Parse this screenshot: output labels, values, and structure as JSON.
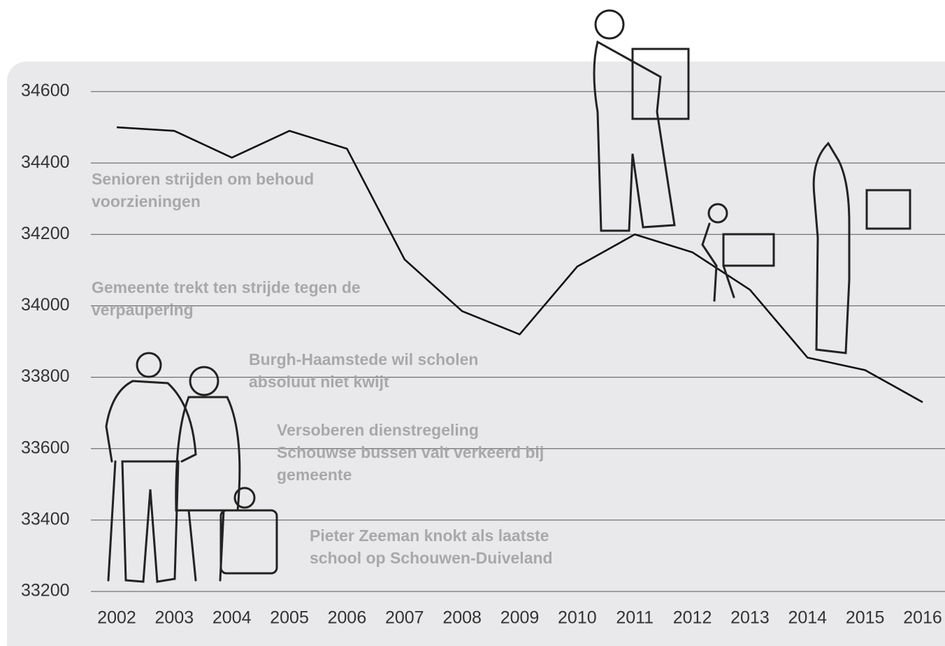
{
  "chart_data": {
    "type": "line",
    "categories": [
      "2002",
      "2003",
      "2004",
      "2005",
      "2006",
      "2007",
      "2008",
      "2009",
      "2010",
      "2011",
      "2012",
      "2013",
      "2014",
      "2015",
      "2016"
    ],
    "values": [
      34500,
      34490,
      34415,
      34490,
      34440,
      34130,
      33985,
      33920,
      34110,
      34200,
      34150,
      34045,
      33855,
      33820,
      33730
    ],
    "color": "#111111",
    "ylim": [
      33200,
      34600
    ],
    "yticks": [
      33200,
      33400,
      33600,
      33800,
      34000,
      34200,
      34400,
      34600
    ],
    "grid": true,
    "annotations": [
      [
        "Senioren strijden om behoud",
        "voorzieningen"
      ],
      [
        "Gemeente trekt ten strijde tegen de",
        "verpaupering"
      ],
      [
        "Burgh-Haamstede wil scholen",
        "absoluut niet kwijt"
      ],
      [
        "Versoberen dienstregeling",
        "Schouwse bussen valt verkeerd bij",
        "gemeente"
      ],
      [
        "Pieter Zeeman knokt als laatste",
        "school op Schouwen-Duiveland"
      ]
    ]
  }
}
